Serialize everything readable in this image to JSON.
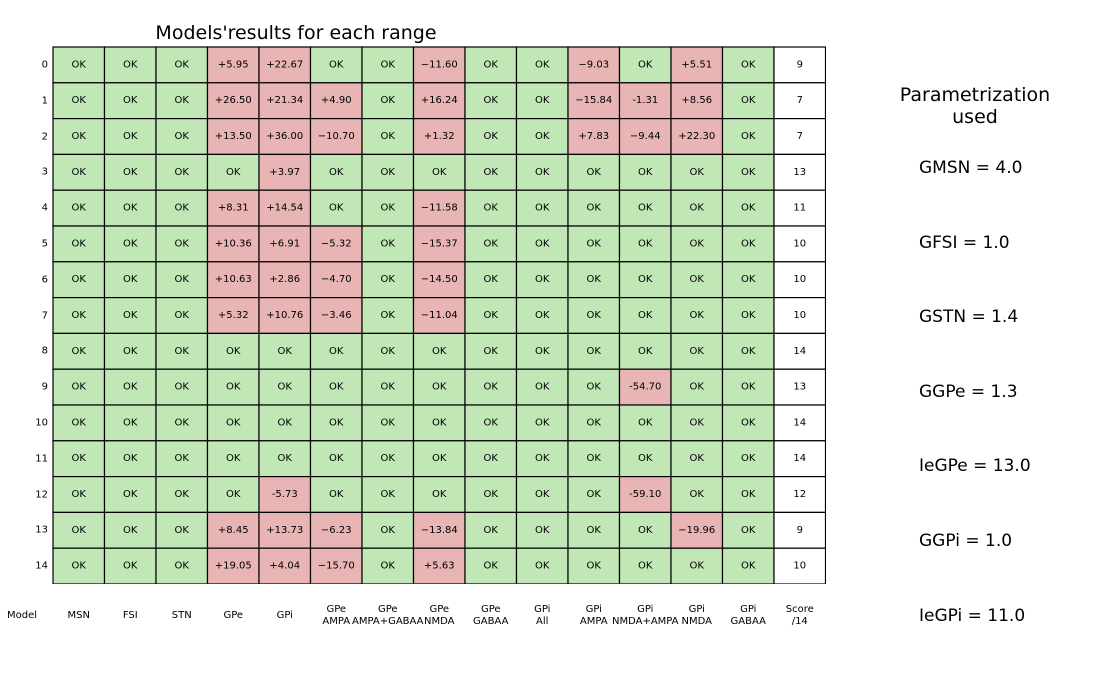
{
  "chart_data": {
    "type": "table",
    "title": "Models'results for each range",
    "row_labels": [
      "0",
      "1",
      "2",
      "3",
      "4",
      "5",
      "6",
      "7",
      "8",
      "9",
      "10",
      "11",
      "12",
      "13",
      "14"
    ],
    "columns": [
      "MSN",
      "FSI",
      "STN",
      "GPe",
      "GPi",
      "GPe\nAMPA",
      "GPe\nAMPA+GABAA",
      "GPe\nNMDA",
      "GPe\nGABAA",
      "GPi\nAll",
      "GPi\nAMPA",
      "GPi\nNMDA+AMPA",
      "GPi\nNMDA",
      "GPi\nGABAA",
      "Score\n/14"
    ],
    "row_header_label": "Model",
    "ok_value": "OK",
    "cells": [
      [
        "OK",
        "OK",
        "OK",
        "+5.95",
        "+22.67",
        "OK",
        "OK",
        "−11.60",
        "OK",
        "OK",
        "−9.03",
        "OK",
        "+5.51",
        "OK",
        "9"
      ],
      [
        "OK",
        "OK",
        "OK",
        "+26.50",
        "+21.34",
        "+4.90",
        "OK",
        "+16.24",
        "OK",
        "OK",
        "−15.84",
        "-1.31",
        "+8.56",
        "OK",
        "7"
      ],
      [
        "OK",
        "OK",
        "OK",
        "+13.50",
        "+36.00",
        "−10.70",
        "OK",
        "+1.32",
        "OK",
        "OK",
        "+7.83",
        "−9.44",
        "+22.30",
        "OK",
        "7"
      ],
      [
        "OK",
        "OK",
        "OK",
        "OK",
        "+3.97",
        "OK",
        "OK",
        "OK",
        "OK",
        "OK",
        "OK",
        "OK",
        "OK",
        "OK",
        "13"
      ],
      [
        "OK",
        "OK",
        "OK",
        "+8.31",
        "+14.54",
        "OK",
        "OK",
        "−11.58",
        "OK",
        "OK",
        "OK",
        "OK",
        "OK",
        "OK",
        "11"
      ],
      [
        "OK",
        "OK",
        "OK",
        "+10.36",
        "+6.91",
        "−5.32",
        "OK",
        "−15.37",
        "OK",
        "OK",
        "OK",
        "OK",
        "OK",
        "OK",
        "10"
      ],
      [
        "OK",
        "OK",
        "OK",
        "+10.63",
        "+2.86",
        "−4.70",
        "OK",
        "−14.50",
        "OK",
        "OK",
        "OK",
        "OK",
        "OK",
        "OK",
        "10"
      ],
      [
        "OK",
        "OK",
        "OK",
        "+5.32",
        "+10.76",
        "−3.46",
        "OK",
        "−11.04",
        "OK",
        "OK",
        "OK",
        "OK",
        "OK",
        "OK",
        "10"
      ],
      [
        "OK",
        "OK",
        "OK",
        "OK",
        "OK",
        "OK",
        "OK",
        "OK",
        "OK",
        "OK",
        "OK",
        "OK",
        "OK",
        "OK",
        "14"
      ],
      [
        "OK",
        "OK",
        "OK",
        "OK",
        "OK",
        "OK",
        "OK",
        "OK",
        "OK",
        "OK",
        "OK",
        "-54.70",
        "OK",
        "OK",
        "13"
      ],
      [
        "OK",
        "OK",
        "OK",
        "OK",
        "OK",
        "OK",
        "OK",
        "OK",
        "OK",
        "OK",
        "OK",
        "OK",
        "OK",
        "OK",
        "14"
      ],
      [
        "OK",
        "OK",
        "OK",
        "OK",
        "OK",
        "OK",
        "OK",
        "OK",
        "OK",
        "OK",
        "OK",
        "OK",
        "OK",
        "OK",
        "14"
      ],
      [
        "OK",
        "OK",
        "OK",
        "OK",
        "-5.73",
        "OK",
        "OK",
        "OK",
        "OK",
        "OK",
        "OK",
        "-59.10",
        "OK",
        "OK",
        "12"
      ],
      [
        "OK",
        "OK",
        "OK",
        "+8.45",
        "+13.73",
        "−6.23",
        "OK",
        "−13.84",
        "OK",
        "OK",
        "OK",
        "OK",
        "−19.96",
        "OK",
        "9"
      ],
      [
        "OK",
        "OK",
        "OK",
        "+19.05",
        "+4.04",
        "−15.70",
        "OK",
        "+5.63",
        "OK",
        "OK",
        "OK",
        "OK",
        "OK",
        "OK",
        "10"
      ]
    ],
    "colors": {
      "ok": "#c1e7b7",
      "fail": "#e8b4b4",
      "score": "#ffffff",
      "border": "#000000"
    },
    "grid": true
  },
  "parametrization": {
    "heading": "Parametrization\nused",
    "entries": [
      "GMSN = 4.0",
      "GFSI = 1.0",
      "GSTN = 1.4",
      "GGPe = 1.3",
      "IeGPe = 13.0",
      "GGPi = 1.0",
      "IeGPi = 11.0"
    ]
  }
}
